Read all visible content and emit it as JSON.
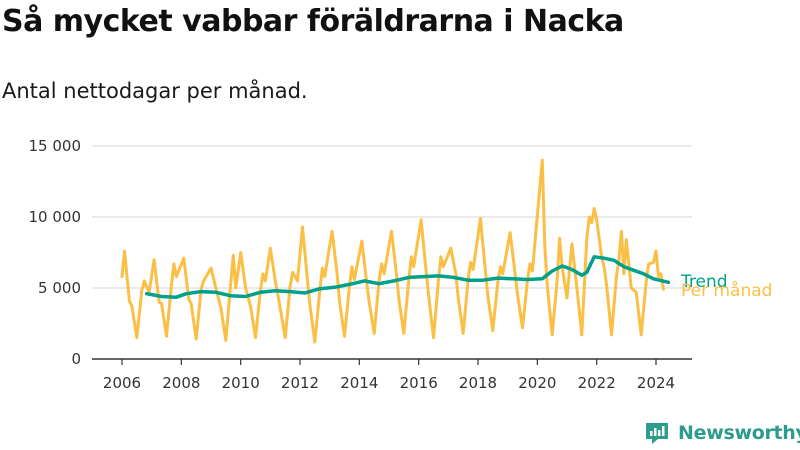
{
  "title": "Så mycket vabbar föräldrarna i Nacka",
  "subtitle": "Antal nettodagar per månad.",
  "brand": {
    "name": "Newsworthy",
    "icon": "newsworthy-logo-icon",
    "color": "#2d9c8c"
  },
  "colors": {
    "monthly": "#fbbf45",
    "trend": "#00a08a",
    "grid": "#dddddd",
    "axis": "#333333"
  },
  "chart_data": {
    "type": "line",
    "title": "Så mycket vabbar föräldrarna i Nacka",
    "subtitle": "Antal nettodagar per månad.",
    "xlabel": "",
    "ylabel": "",
    "xlim": [
      "2006-01",
      "2024-06"
    ],
    "ylim": [
      0,
      15000
    ],
    "x_ticks": [
      "2006",
      "2008",
      "2010",
      "2012",
      "2014",
      "2016",
      "2018",
      "2020",
      "2022",
      "2024"
    ],
    "y_ticks": [
      "0",
      "5 000",
      "10 000",
      "15 000"
    ],
    "grid": "horizontal",
    "legend": "direct labels at line ends",
    "series": [
      {
        "name": "Trend",
        "color": "#00a08a",
        "points": [
          [
            "2006-11",
            4600
          ],
          [
            "2007-05",
            4400
          ],
          [
            "2007-11",
            4350
          ],
          [
            "2008-03",
            4600
          ],
          [
            "2008-09",
            4750
          ],
          [
            "2009-03",
            4700
          ],
          [
            "2009-09",
            4450
          ],
          [
            "2010-03",
            4400
          ],
          [
            "2010-09",
            4700
          ],
          [
            "2011-03",
            4800
          ],
          [
            "2011-09",
            4750
          ],
          [
            "2012-03",
            4650
          ],
          [
            "2012-09",
            4950
          ],
          [
            "2013-03",
            5050
          ],
          [
            "2013-09",
            5250
          ],
          [
            "2014-03",
            5500
          ],
          [
            "2014-09",
            5300
          ],
          [
            "2015-03",
            5500
          ],
          [
            "2015-09",
            5750
          ],
          [
            "2016-03",
            5800
          ],
          [
            "2016-09",
            5850
          ],
          [
            "2017-03",
            5750
          ],
          [
            "2017-09",
            5550
          ],
          [
            "2018-03",
            5550
          ],
          [
            "2018-09",
            5700
          ],
          [
            "2019-03",
            5650
          ],
          [
            "2019-09",
            5600
          ],
          [
            "2020-03",
            5650
          ],
          [
            "2020-07",
            6200
          ],
          [
            "2020-11",
            6550
          ],
          [
            "2021-03",
            6300
          ],
          [
            "2021-07",
            5900
          ],
          [
            "2021-09",
            6100
          ],
          [
            "2021-12",
            7200
          ],
          [
            "2022-04",
            7100
          ],
          [
            "2022-08",
            6950
          ],
          [
            "2022-12",
            6500
          ],
          [
            "2023-04",
            6250
          ],
          [
            "2023-08",
            6000
          ],
          [
            "2023-12",
            5650
          ],
          [
            "2024-06",
            5400
          ]
        ]
      },
      {
        "name": "Per månad",
        "color": "#fbbf45",
        "points": [
          [
            "2006-01",
            5800
          ],
          [
            "2006-02",
            7600
          ],
          [
            "2006-04",
            4100
          ],
          [
            "2006-05",
            3700
          ],
          [
            "2006-07",
            1500
          ],
          [
            "2006-09",
            4800
          ],
          [
            "2006-10",
            5500
          ],
          [
            "2006-12",
            4700
          ],
          [
            "2007-02",
            7000
          ],
          [
            "2007-04",
            4000
          ],
          [
            "2007-05",
            3900
          ],
          [
            "2007-07",
            1600
          ],
          [
            "2007-09",
            5200
          ],
          [
            "2007-10",
            6700
          ],
          [
            "2007-11",
            5800
          ],
          [
            "2008-02",
            7100
          ],
          [
            "2008-04",
            4200
          ],
          [
            "2008-05",
            3900
          ],
          [
            "2008-07",
            1400
          ],
          [
            "2008-09",
            4900
          ],
          [
            "2008-10",
            5500
          ],
          [
            "2009-01",
            6400
          ],
          [
            "2009-03",
            5000
          ],
          [
            "2009-05",
            3600
          ],
          [
            "2009-07",
            1300
          ],
          [
            "2009-09",
            5400
          ],
          [
            "2009-10",
            7300
          ],
          [
            "2009-11",
            5000
          ],
          [
            "2010-01",
            7500
          ],
          [
            "2010-03",
            5000
          ],
          [
            "2010-05",
            3700
          ],
          [
            "2010-07",
            1500
          ],
          [
            "2010-09",
            4800
          ],
          [
            "2010-10",
            6000
          ],
          [
            "2010-11",
            5500
          ],
          [
            "2011-01",
            7800
          ],
          [
            "2011-03",
            5500
          ],
          [
            "2011-05",
            3600
          ],
          [
            "2011-07",
            1500
          ],
          [
            "2011-09",
            5100
          ],
          [
            "2011-10",
            6100
          ],
          [
            "2011-12",
            5500
          ],
          [
            "2012-02",
            9300
          ],
          [
            "2012-04",
            5600
          ],
          [
            "2012-05",
            3800
          ],
          [
            "2012-07",
            1200
          ],
          [
            "2012-09",
            4800
          ],
          [
            "2012-10",
            6400
          ],
          [
            "2012-11",
            5800
          ],
          [
            "2013-02",
            9000
          ],
          [
            "2013-04",
            6000
          ],
          [
            "2013-05",
            4000
          ],
          [
            "2013-07",
            1600
          ],
          [
            "2013-09",
            5100
          ],
          [
            "2013-10",
            6500
          ],
          [
            "2013-11",
            5600
          ],
          [
            "2014-02",
            8300
          ],
          [
            "2014-04",
            5300
          ],
          [
            "2014-05",
            4000
          ],
          [
            "2014-07",
            1800
          ],
          [
            "2014-09",
            5500
          ],
          [
            "2014-10",
            6700
          ],
          [
            "2014-11",
            6000
          ],
          [
            "2015-02",
            9000
          ],
          [
            "2015-04",
            6000
          ],
          [
            "2015-05",
            4200
          ],
          [
            "2015-07",
            1800
          ],
          [
            "2015-09",
            5600
          ],
          [
            "2015-10",
            7200
          ],
          [
            "2015-11",
            6500
          ],
          [
            "2016-02",
            9800
          ],
          [
            "2016-04",
            6200
          ],
          [
            "2016-05",
            4500
          ],
          [
            "2016-07",
            1500
          ],
          [
            "2016-09",
            5500
          ],
          [
            "2016-10",
            7200
          ],
          [
            "2016-11",
            6500
          ],
          [
            "2017-02",
            7800
          ],
          [
            "2017-04",
            6000
          ],
          [
            "2017-05",
            4300
          ],
          [
            "2017-07",
            1800
          ],
          [
            "2017-09",
            5600
          ],
          [
            "2017-10",
            6800
          ],
          [
            "2017-11",
            6300
          ],
          [
            "2018-02",
            9900
          ],
          [
            "2018-04",
            6200
          ],
          [
            "2018-05",
            4400
          ],
          [
            "2018-07",
            2000
          ],
          [
            "2018-09",
            5400
          ],
          [
            "2018-10",
            6500
          ],
          [
            "2018-11",
            6000
          ],
          [
            "2019-02",
            8900
          ],
          [
            "2019-04",
            6000
          ],
          [
            "2019-05",
            4500
          ],
          [
            "2019-07",
            2200
          ],
          [
            "2019-09",
            5500
          ],
          [
            "2019-10",
            6700
          ],
          [
            "2019-11",
            6200
          ],
          [
            "2020-03",
            14000
          ],
          [
            "2020-04",
            8000
          ],
          [
            "2020-05",
            5200
          ],
          [
            "2020-07",
            1700
          ],
          [
            "2020-09",
            5500
          ],
          [
            "2020-10",
            8500
          ],
          [
            "2020-11",
            6500
          ],
          [
            "2021-01",
            4300
          ],
          [
            "2021-03",
            8100
          ],
          [
            "2021-05",
            5000
          ],
          [
            "2021-07",
            1700
          ],
          [
            "2021-09",
            8500
          ],
          [
            "2021-10",
            10000
          ],
          [
            "2021-11",
            9600
          ],
          [
            "2021-12",
            10600
          ],
          [
            "2022-01",
            9800
          ],
          [
            "2022-03",
            7200
          ],
          [
            "2022-04",
            6500
          ],
          [
            "2022-05",
            5200
          ],
          [
            "2022-07",
            1700
          ],
          [
            "2022-09",
            5800
          ],
          [
            "2022-10",
            7000
          ],
          [
            "2022-11",
            9000
          ],
          [
            "2022-12",
            6000
          ],
          [
            "2023-01",
            8400
          ],
          [
            "2023-03",
            5000
          ],
          [
            "2023-05",
            4700
          ],
          [
            "2023-07",
            1700
          ],
          [
            "2023-09",
            5400
          ],
          [
            "2023-10",
            6700
          ],
          [
            "2023-12",
            6800
          ],
          [
            "2024-01",
            7600
          ],
          [
            "2024-02",
            5800
          ],
          [
            "2024-03",
            6000
          ],
          [
            "2024-04",
            4900
          ]
        ]
      }
    ]
  }
}
